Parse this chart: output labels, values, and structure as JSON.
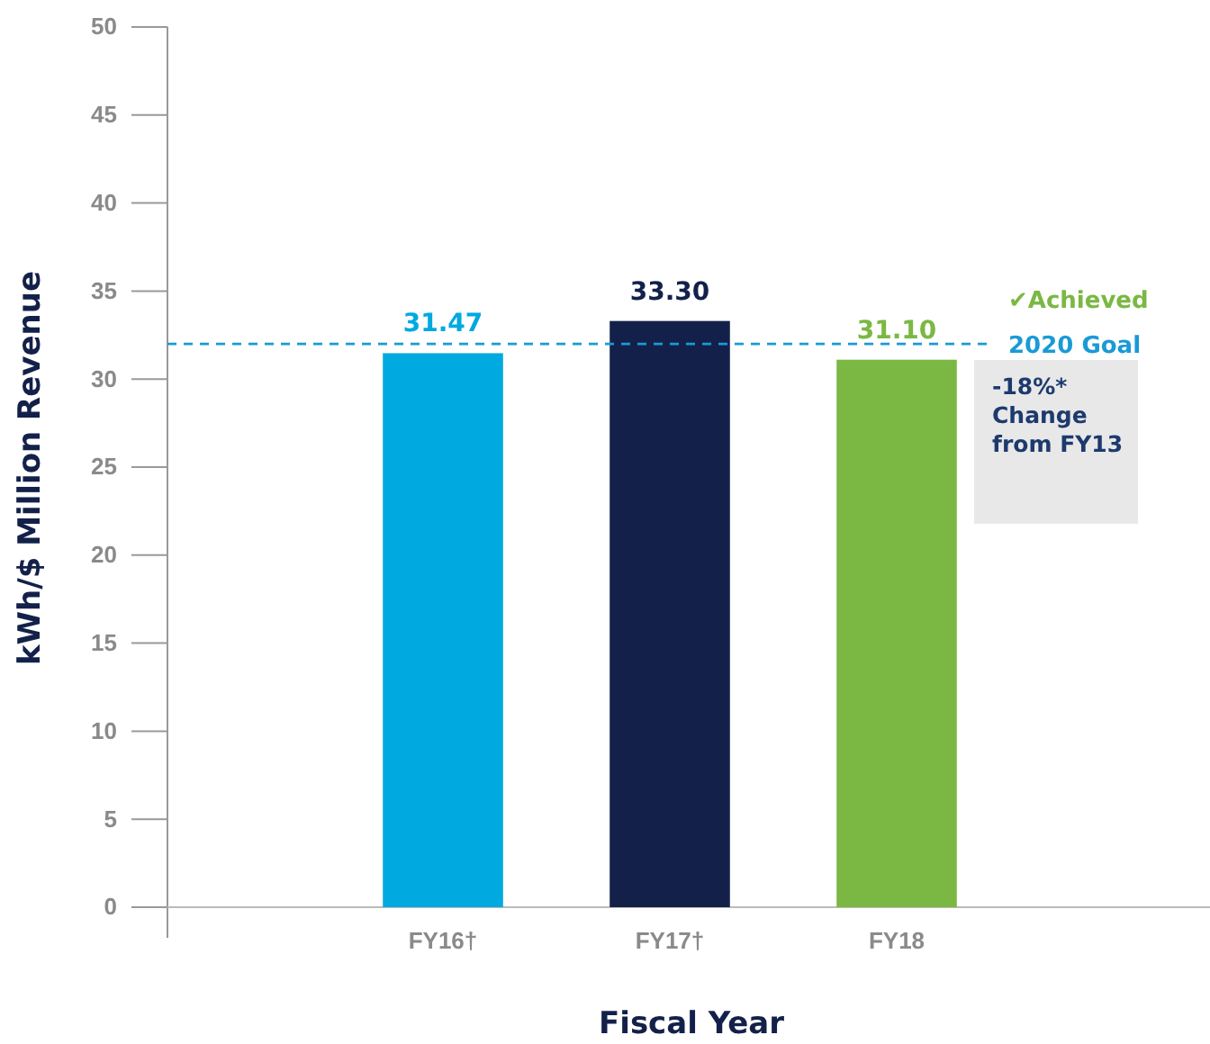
{
  "chart_data": {
    "type": "bar",
    "categories": [
      "FY16†",
      "FY17†",
      "FY18"
    ],
    "values": [
      31.47,
      33.3,
      31.1
    ],
    "colors": [
      "#00a9e0",
      "#13214a",
      "#7ab843"
    ],
    "value_labels": [
      "31.47",
      "33.30",
      "31.10"
    ],
    "xlabel": "Fiscal Year",
    "ylabel": "kWh/$ Million Revenue",
    "ylim": [
      0,
      50
    ],
    "yticks": [
      0,
      5,
      10,
      15,
      20,
      25,
      30,
      35,
      40,
      45,
      50
    ],
    "grid": false,
    "ref_lines": [
      {
        "axis": "y",
        "value": 32,
        "label": "2020 Goal",
        "color": "#1a9ad6",
        "line_style": "dashed"
      }
    ],
    "annotations": [
      "✔Achieved",
      "-18%* Change from FY13"
    ]
  }
}
